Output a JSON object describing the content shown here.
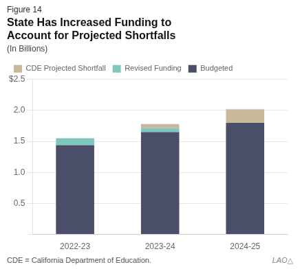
{
  "chart_data": {
    "type": "bar",
    "stacked": true,
    "title": [
      "State Has Increased Funding to",
      "Account for Projected Shortfalls"
    ],
    "subtitle": "(In Billions)",
    "annotations": [
      "Figure 14",
      "CDE = California Department of Education.",
      "LAO△"
    ],
    "categories": [
      "2022-23",
      "2023-24",
      "2024-25"
    ],
    "series": [
      {
        "name": "Budgeted",
        "color": "#4a4e69",
        "values": [
          1.44,
          1.65,
          1.8
        ]
      },
      {
        "name": "Revised Funding",
        "color": "#7ec8c0",
        "values": [
          0.11,
          0.065,
          0.0
        ]
      },
      {
        "name": "CDE Projected Shortfall",
        "color": "#c8b99a",
        "values": [
          0.0,
          0.065,
          0.22
        ]
      }
    ],
    "ylim": [
      0,
      2.5
    ],
    "yticks": [
      {
        "value": 0,
        "label": ""
      },
      0.5,
      {
        "value": 1.0,
        "label": "1.0"
      },
      1.5,
      {
        "value": 2.0,
        "label": "2.0"
      },
      {
        "value": 2.5,
        "label": "$2.5"
      }
    ],
    "grid": true,
    "legend": "upper left"
  }
}
